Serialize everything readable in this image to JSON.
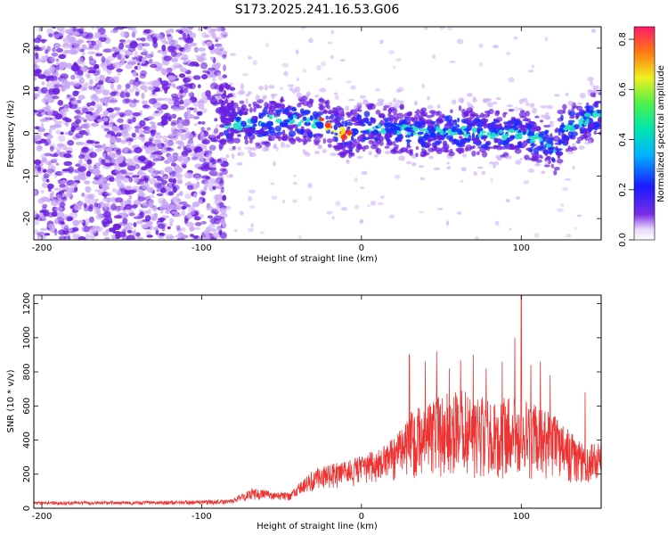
{
  "figure_title": "S173.2025.241.16.53.G06",
  "colors": {
    "snr_line": "#ee3333",
    "blob_purple": "#6a1de0",
    "blob_light": "#c9a8f5",
    "blob_blue": "#1a2bff",
    "blob_cyan": "#22e0c8",
    "blob_red": "#ff2020",
    "blob_yellow": "#f2f020"
  },
  "chart_data": [
    {
      "type": "heatmap",
      "title": "S173.2025.241.16.53.G06",
      "xlabel": "Height of straight line (km)",
      "ylabel": "Frequency (Hz)",
      "xlim": [
        -205,
        150
      ],
      "ylim": [
        -25,
        25
      ],
      "xticks": [
        -200,
        -100,
        0,
        100
      ],
      "yticks": [
        -20,
        -10,
        0,
        10,
        20
      ],
      "colorbar": {
        "label": "Normalized spectral amplitude",
        "range": [
          0,
          0.85
        ],
        "ticks": [
          "0.0",
          "0.2",
          "0.4",
          "0.6",
          "0.8"
        ]
      },
      "noise_region_km": [
        -205,
        -85
      ],
      "signal_trace": {
        "description_points_km_hz": [
          [
            -85,
            2
          ],
          [
            -70,
            2
          ],
          [
            -55,
            3
          ],
          [
            -40,
            3
          ],
          [
            -25,
            2.5
          ],
          [
            -15,
            1
          ],
          [
            -8,
            -1
          ],
          [
            0,
            1.5
          ],
          [
            20,
            1
          ],
          [
            40,
            0
          ],
          [
            60,
            0.5
          ],
          [
            80,
            0
          ],
          [
            100,
            0
          ],
          [
            115,
            -2
          ],
          [
            122,
            -5
          ],
          [
            125,
            0.5
          ],
          [
            135,
            2
          ],
          [
            145,
            4
          ],
          [
            150,
            4.5
          ]
        ],
        "peak_region_km": [
          -25,
          -5
        ]
      }
    },
    {
      "type": "line",
      "title": "",
      "xlabel": "Height of straight line (km)",
      "ylabel": "SNR (10 * v/v)",
      "xlim": [
        -205,
        150
      ],
      "ylim": [
        0,
        1250
      ],
      "xticks": [
        -200,
        -100,
        0,
        100
      ],
      "yticks": [
        0,
        200,
        400,
        600,
        800,
        1000,
        1200
      ],
      "series": [
        {
          "name": "SNR",
          "envelope_km_snr": [
            [
              -205,
              40
            ],
            [
              -150,
              40
            ],
            [
              -100,
              45
            ],
            [
              -80,
              55
            ],
            [
              -70,
              120
            ],
            [
              -45,
              90
            ],
            [
              -30,
              230
            ],
            [
              -10,
              280
            ],
            [
              5,
              330
            ],
            [
              20,
              420
            ],
            [
              30,
              560
            ],
            [
              40,
              640
            ],
            [
              60,
              700
            ],
            [
              80,
              650
            ],
            [
              100,
              650
            ],
            [
              120,
              550
            ],
            [
              140,
              380
            ],
            [
              150,
              400
            ]
          ],
          "baseline_km_snr": [
            [
              -205,
              20
            ],
            [
              -150,
              20
            ],
            [
              -100,
              20
            ],
            [
              -80,
              25
            ],
            [
              -70,
              45
            ],
            [
              -45,
              45
            ],
            [
              -30,
              100
            ],
            [
              -10,
              120
            ],
            [
              5,
              140
            ],
            [
              20,
              160
            ],
            [
              30,
              170
            ],
            [
              40,
              180
            ],
            [
              60,
              180
            ],
            [
              80,
              170
            ],
            [
              100,
              170
            ],
            [
              120,
              160
            ],
            [
              140,
              140
            ],
            [
              150,
              150
            ]
          ],
          "peaks_km_snr": [
            [
              30,
              900
            ],
            [
              40,
              860
            ],
            [
              47,
              920
            ],
            [
              55,
              820
            ],
            [
              62,
              870
            ],
            [
              70,
              900
            ],
            [
              78,
              820
            ],
            [
              88,
              860
            ],
            [
              96,
              1000
            ],
            [
              100,
              1250
            ],
            [
              106,
              840
            ],
            [
              112,
              860
            ],
            [
              118,
              780
            ],
            [
              140,
              680
            ]
          ]
        }
      ]
    }
  ]
}
